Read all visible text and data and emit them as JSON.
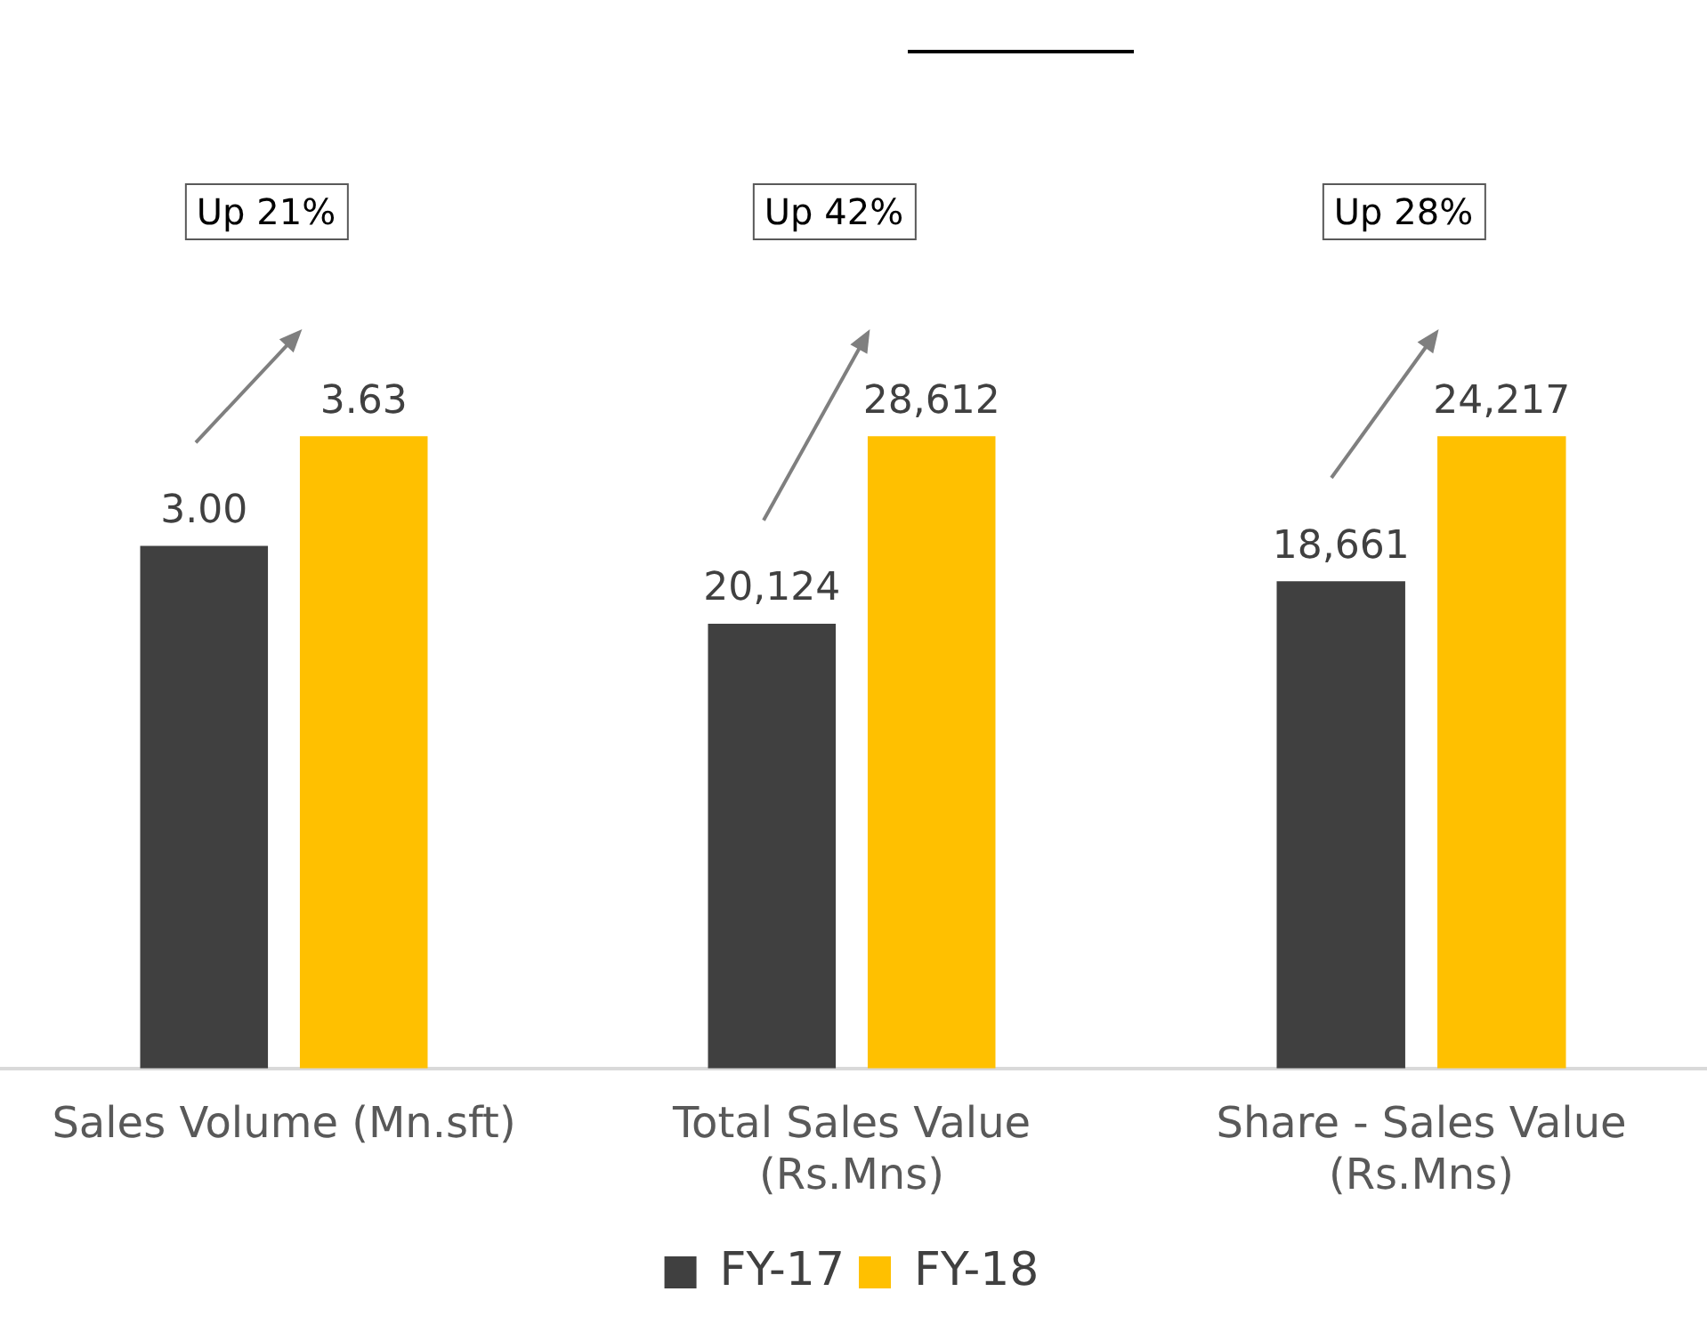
{
  "chart_data": [
    {
      "type": "bar",
      "categories": [
        "Sales Volume (Mn.sft)"
      ],
      "series": [
        {
          "color": "#404040",
          "values": [
            3.0
          ],
          "value_labels": [
            "3.00"
          ]
        },
        {
          "color": "#ffc000",
          "values": [
            3.63
          ],
          "value_labels": [
            "3.63"
          ]
        }
      ],
      "annotations": [
        "Up 21%"
      ]
    },
    {
      "type": "bar",
      "categories": [
        "Total Sales Value (Rs.Mns)"
      ],
      "series": [
        {
          "name": "FY-17",
          "color": "#404040",
          "values": [
            20124
          ],
          "value_labels": [
            "20,124"
          ]
        },
        {
          "name": "FY-18",
          "color": "#ffc000",
          "values": [
            28612
          ],
          "value_labels": [
            "28,612"
          ]
        }
      ],
      "annotations": [
        "Up 42%"
      ],
      "legend": "bottom"
    },
    {
      "type": "bar",
      "categories": [
        "Share - Sales Value (Rs.Mns)"
      ],
      "series": [
        {
          "color": "#404040",
          "values": [
            18661
          ],
          "value_labels": [
            "18,661"
          ]
        },
        {
          "color": "#ffc000",
          "values": [
            24217
          ],
          "value_labels": [
            "24,217"
          ]
        }
      ],
      "annotations": [
        "Up 28%"
      ]
    }
  ]
}
